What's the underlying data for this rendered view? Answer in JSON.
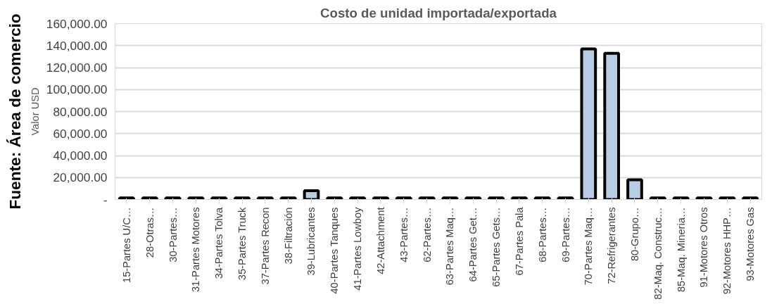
{
  "chart_data": {
    "type": "bar",
    "title": "Costo de unidad importada/exportada",
    "ylabel": "Valor USD",
    "annotations": [
      "Fuente: Área de comercio"
    ],
    "categories": [
      "15-Partes U/C…",
      "28-Otras…",
      "30-Partes…",
      "31-Partes Motores",
      "34-Partes Tolva",
      "35-Partes Truck",
      "37-Partes Recon",
      "38-Filtración",
      "39-Lubricantes",
      "40-Partes Tanques",
      "41-Partes Lowboy",
      "42-Attachment",
      "43-Partes…",
      "62-Partes…",
      "63-Partes Maq…",
      "64-Partes Get…",
      "65-Partes Gets…",
      "67-Partes Pala",
      "68-Partes…",
      "69-Partes…",
      "70-Partes Maq…",
      "72-Refrigerantes",
      "80-Grupo…",
      "82-Maq. Construc…",
      "85-Maq. Mineria…",
      "91-Motores Otros",
      "92-Motores HHP…",
      "93-Motores Gas"
    ],
    "values": [
      1500,
      1500,
      1500,
      1500,
      1500,
      1500,
      1500,
      1500,
      8000,
      1500,
      1500,
      1500,
      1500,
      1500,
      1500,
      1500,
      1500,
      1500,
      1500,
      1500,
      137000,
      133000,
      18000,
      1500,
      1500,
      1500,
      1500,
      1500
    ],
    "color": "#b8cce4",
    "ylim": [
      0,
      160000
    ],
    "yticks": [
      {
        "value": 0,
        "label": "-"
      },
      {
        "value": 20000,
        "label": "20,000.00"
      },
      {
        "value": 40000,
        "label": "40,000.00"
      },
      {
        "value": 60000,
        "label": "60,000.00"
      },
      {
        "value": 80000,
        "label": "80,000.00"
      },
      {
        "value": 100000,
        "label": "100,000.00"
      },
      {
        "value": 120000,
        "label": "120,000.00"
      },
      {
        "value": 140000,
        "label": "140,000.00"
      },
      {
        "value": 160000,
        "label": "160,000.00"
      }
    ],
    "grid": "y"
  }
}
